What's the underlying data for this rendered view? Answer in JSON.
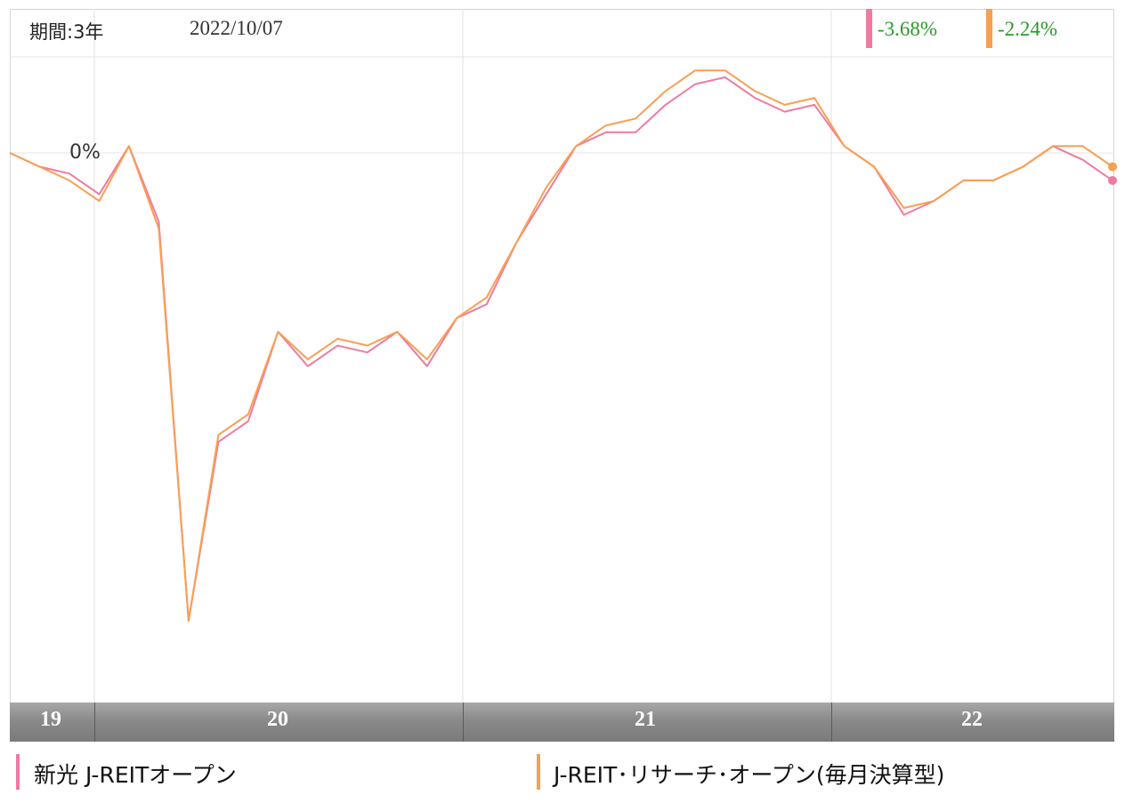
{
  "header": {
    "period_label": "期間:3年",
    "date": "2022/10/07"
  },
  "returns": [
    {
      "value": "-3.68%",
      "color": "#f07aa0"
    },
    {
      "value": "-2.24%",
      "color": "#f8a050"
    }
  ],
  "legend": [
    {
      "label": "新光 J-REITオープン",
      "color": "#f07aa0"
    },
    {
      "label": "J-REIT･リサーチ･オープン(毎月決算型)",
      "color": "#f8a050"
    }
  ],
  "chart_data": {
    "type": "line",
    "zero_label": "0%",
    "x_labels": [
      "19",
      "20",
      "21",
      "22"
    ],
    "x": [
      "2019-10",
      "2019-11",
      "2019-12",
      "2020-01",
      "2020-02",
      "2020-03",
      "2020-03",
      "2020-04",
      "2020-05",
      "2020-06",
      "2020-07",
      "2020-08",
      "2020-09",
      "2020-10",
      "2020-11",
      "2020-12",
      "2021-01",
      "2021-02",
      "2021-03",
      "2021-04",
      "2021-05",
      "2021-06",
      "2021-07",
      "2021-08",
      "2021-09",
      "2021-10",
      "2021-11",
      "2021-12",
      "2022-01",
      "2022-02",
      "2022-03",
      "2022-04",
      "2022-05",
      "2022-06",
      "2022-07",
      "2022-08",
      "2022-09",
      "2022-10"
    ],
    "series": [
      {
        "name": "新光 J-REITオープン",
        "color": "#f07aa0",
        "values": [
          0,
          -2,
          -3,
          -6,
          1,
          -10,
          -68,
          -42,
          -39,
          -26,
          -31,
          -28,
          -29,
          -26,
          -31,
          -24,
          -22,
          -13,
          -6,
          1,
          3,
          3,
          7,
          10,
          11,
          8,
          6,
          7,
          1,
          -2,
          -9,
          -7,
          -4,
          -4,
          -2,
          1,
          -1,
          -4
        ]
      },
      {
        "name": "J-REIT･リサーチ･オープン(毎月決算型)",
        "color": "#f8a050",
        "values": [
          0,
          -2,
          -4,
          -7,
          1,
          -11,
          -68,
          -41,
          -38,
          -26,
          -30,
          -27,
          -28,
          -26,
          -30,
          -24,
          -21,
          -13,
          -5,
          1,
          4,
          5,
          9,
          12,
          12,
          9,
          7,
          8,
          1,
          -2,
          -8,
          -7,
          -4,
          -4,
          -2,
          1,
          1,
          -2
        ]
      }
    ],
    "ylim": [
      -80,
      15
    ],
    "grid": true
  }
}
